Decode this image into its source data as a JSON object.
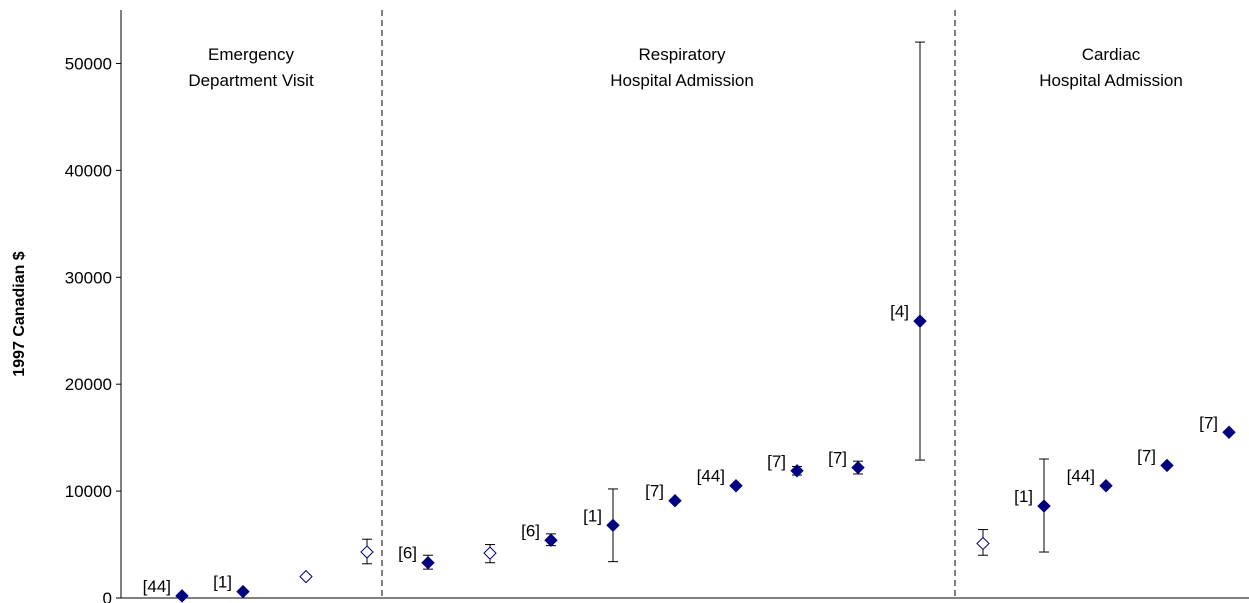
{
  "chart_data": {
    "type": "scatter",
    "title": "",
    "xlabel": "",
    "ylabel": "1997 Canadian $",
    "ylim": [
      0,
      55000
    ],
    "yticks": [
      0,
      10000,
      20000,
      30000,
      40000,
      50000
    ],
    "grid": false,
    "sections": [
      {
        "lines": [
          "Emergency",
          "Department Visit"
        ]
      },
      {
        "lines": [
          "Respiratory",
          "Hospital Admission"
        ]
      },
      {
        "lines": [
          "Cardiac",
          "Hospital Admission"
        ]
      }
    ],
    "points": [
      {
        "section": 0,
        "label": "[44]",
        "y": 200,
        "filled": true
      },
      {
        "section": 0,
        "label": "[1]",
        "y": 600,
        "filled": true
      },
      {
        "section": 0,
        "label": "",
        "y": 2000,
        "filled": false
      },
      {
        "section": 0,
        "label": "",
        "y": 4300,
        "filled": false,
        "err": [
          3200,
          5500
        ]
      },
      {
        "section": 1,
        "label": "[6]",
        "y": 3300,
        "filled": true,
        "err": [
          2700,
          4000
        ]
      },
      {
        "section": 1,
        "label": "",
        "y": 4200,
        "filled": false,
        "err": [
          3300,
          5000
        ]
      },
      {
        "section": 1,
        "label": "[6]",
        "y": 5400,
        "filled": true,
        "err": [
          4900,
          6000
        ]
      },
      {
        "section": 1,
        "label": "[1]",
        "y": 6800,
        "filled": true,
        "err": [
          3400,
          10200
        ]
      },
      {
        "section": 1,
        "label": "[7]",
        "y": 9100,
        "filled": true
      },
      {
        "section": 1,
        "label": "[44]",
        "y": 10500,
        "filled": true
      },
      {
        "section": 1,
        "label": "[7]",
        "y": 11900,
        "filled": true,
        "err": [
          11500,
          12300
        ]
      },
      {
        "section": 1,
        "label": "[7]",
        "y": 12200,
        "filled": true,
        "err": [
          11600,
          12800
        ]
      },
      {
        "section": 1,
        "label": "[4]",
        "y": 25900,
        "filled": true,
        "err": [
          12900,
          52000
        ]
      },
      {
        "section": 2,
        "label": "",
        "y": 5100,
        "filled": false,
        "err": [
          4000,
          6400
        ]
      },
      {
        "section": 2,
        "label": "[1]",
        "y": 8600,
        "filled": true,
        "err": [
          4300,
          13000
        ]
      },
      {
        "section": 2,
        "label": "[44]",
        "y": 10500,
        "filled": true
      },
      {
        "section": 2,
        "label": "[7]",
        "y": 12400,
        "filled": true
      },
      {
        "section": 2,
        "label": "[7]",
        "y": 15500,
        "filled": true
      }
    ],
    "colors": {
      "marker": "#000080",
      "axis": "#000000"
    }
  }
}
